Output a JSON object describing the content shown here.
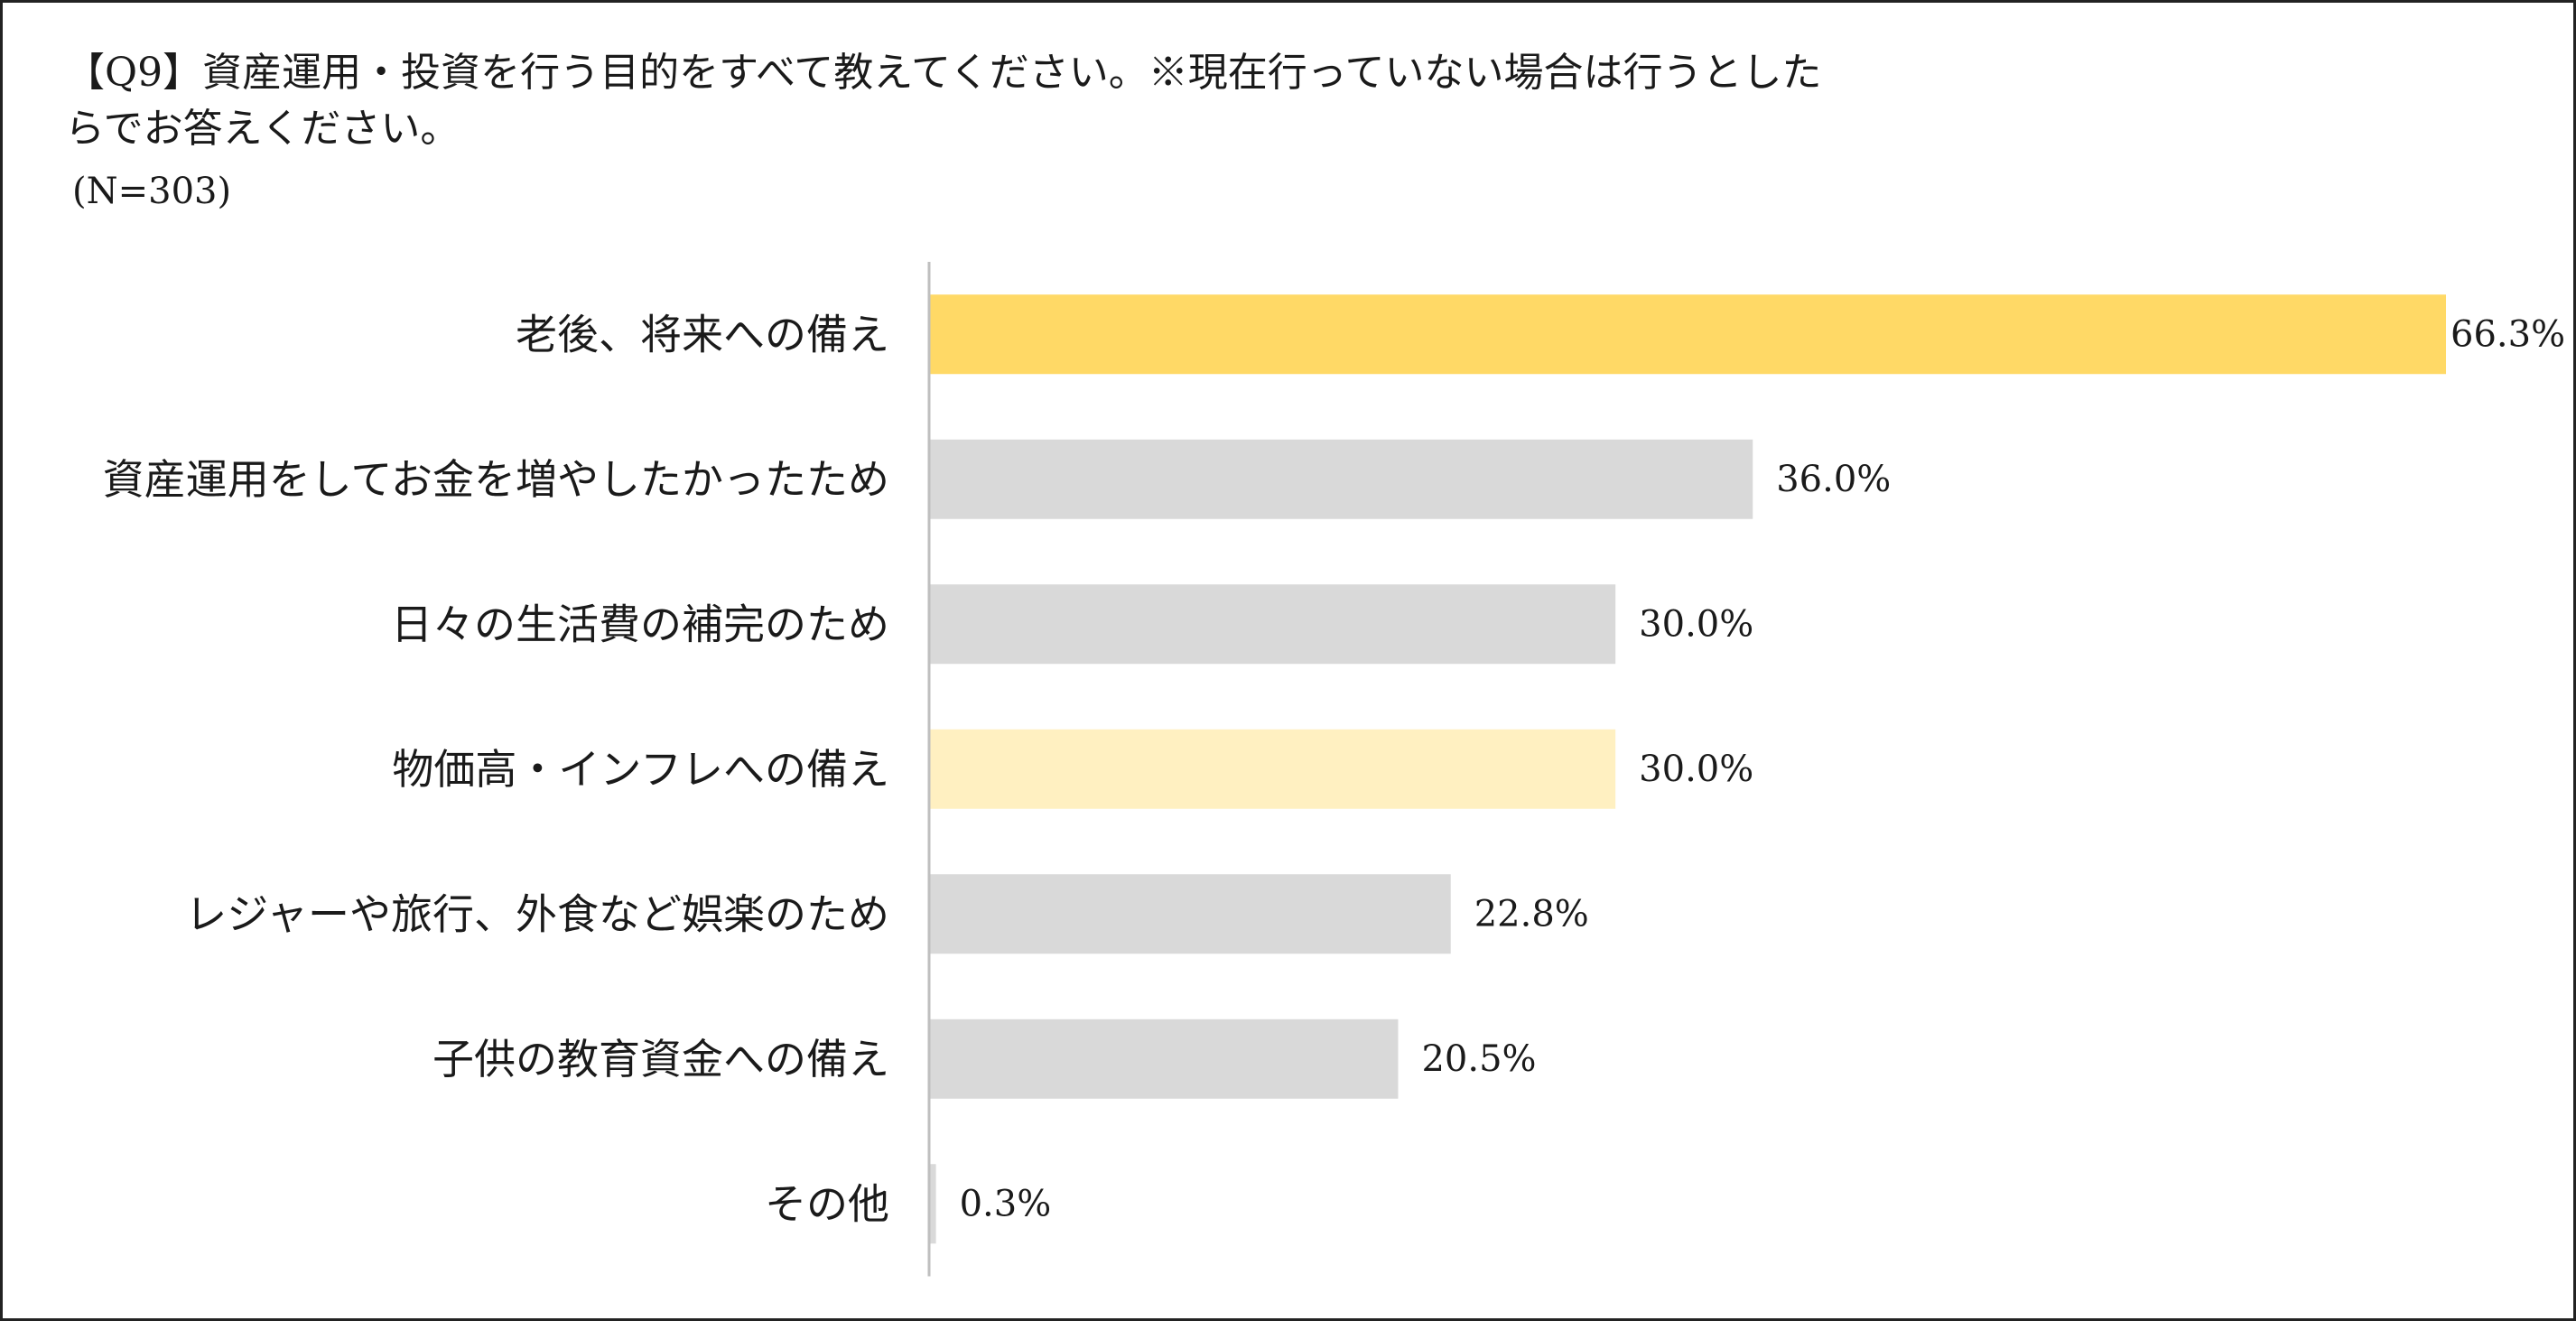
{
  "question": {
    "line1": "【Q9】資産運用・投資を行う目的をすべて教えてください。※現在行っていない場合は行うとした",
    "line2": "らでお答えください。",
    "sample_size": "(N=303)"
  },
  "colors": {
    "highlight": "#FFD966",
    "highlight_light": "#FFF0C1",
    "default_bar": "#D9D9D9",
    "axis_line": "#BFBFBF"
  },
  "chart_data": {
    "type": "bar",
    "orientation": "horizontal",
    "title": "【Q9】資産運用・投資を行う目的をすべて教えてください。※現在行っていない場合は行うとしたらでお答えください。",
    "subtitle": "(N=303)",
    "xlabel": "",
    "ylabel": "",
    "unit": "%",
    "xlim": [
      0,
      66.3
    ],
    "grid": false,
    "legend": "none",
    "categories": [
      "老後、将来への備え",
      "資産運用をしてお金を増やしたかったため",
      "日々の生活費の補完のため",
      "物価高・インフレへの備え",
      "レジャーや旅行、外食など娯楽のため",
      "子供の教育資金への備え",
      "その他"
    ],
    "values": [
      66.3,
      36.0,
      30.0,
      30.0,
      22.8,
      20.5,
      0.3
    ],
    "value_labels": [
      "66.3%",
      "36.0%",
      "30.0%",
      "30.0%",
      "22.8%",
      "20.5%",
      "0.3%"
    ],
    "bar_color_keys": [
      "highlight",
      "default_bar",
      "default_bar",
      "highlight_light",
      "default_bar",
      "default_bar",
      "default_bar"
    ]
  }
}
